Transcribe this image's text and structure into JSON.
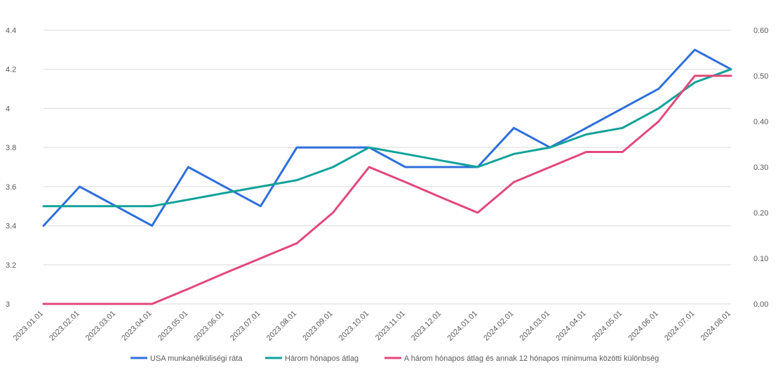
{
  "chart_data": {
    "type": "line",
    "title": "",
    "xlabel": "",
    "ylabel": "",
    "grid": true,
    "legend_position": "bottom",
    "x": [
      "2023.01.01",
      "2023.02.01",
      "2023.03.01",
      "2023.04.01",
      "2023.05.01",
      "2023.06.01",
      "2023.07.01",
      "2023.08.01",
      "2023.09.01",
      "2023.10.01",
      "2023.11.01",
      "2023.12.01",
      "2024.01.01",
      "2024.02.01",
      "2024.03.01",
      "2024.04.01",
      "2024.05.01",
      "2024.06.01",
      "2024.07.01",
      "2024.08.01"
    ],
    "y_left": {
      "min": 3,
      "max": 4.4,
      "ticks": [
        "3",
        "3.2",
        "3.4",
        "3.6",
        "3.8",
        "4",
        "4.2",
        "4.4"
      ]
    },
    "y_right": {
      "min": 0,
      "max": 0.6,
      "ticks": [
        "0.00",
        "0.10",
        "0.20",
        "0.30",
        "0.40",
        "0.50",
        "0.60"
      ]
    },
    "series": [
      {
        "name": "USA munkanélküliségi ráta",
        "axis": "left",
        "color": "#2e6fdc",
        "values": [
          3.4,
          3.6,
          3.5,
          3.4,
          3.7,
          3.6,
          3.5,
          3.8,
          3.8,
          3.8,
          3.7,
          3.7,
          3.7,
          3.9,
          3.8,
          3.9,
          4.0,
          4.1,
          4.3,
          4.2
        ]
      },
      {
        "name": "Három hónapos átlag",
        "axis": "left",
        "color": "#11a29a",
        "values": [
          3.5,
          3.5,
          3.5,
          3.5,
          3.533,
          3.567,
          3.6,
          3.633,
          3.7,
          3.8,
          3.767,
          3.733,
          3.7,
          3.767,
          3.8,
          3.867,
          3.9,
          4.0,
          4.133,
          4.2
        ]
      },
      {
        "name": "A három hónapos átlag és annak 12 hónapos minimuma közötti különbség",
        "axis": "right",
        "color": "#e2487a",
        "values": [
          0.0,
          0.0,
          0.0,
          0.0,
          0.033,
          0.067,
          0.1,
          0.133,
          0.2,
          0.3,
          0.267,
          0.233,
          0.2,
          0.267,
          0.3,
          0.333,
          0.333,
          0.4,
          0.5,
          0.5
        ]
      }
    ]
  }
}
